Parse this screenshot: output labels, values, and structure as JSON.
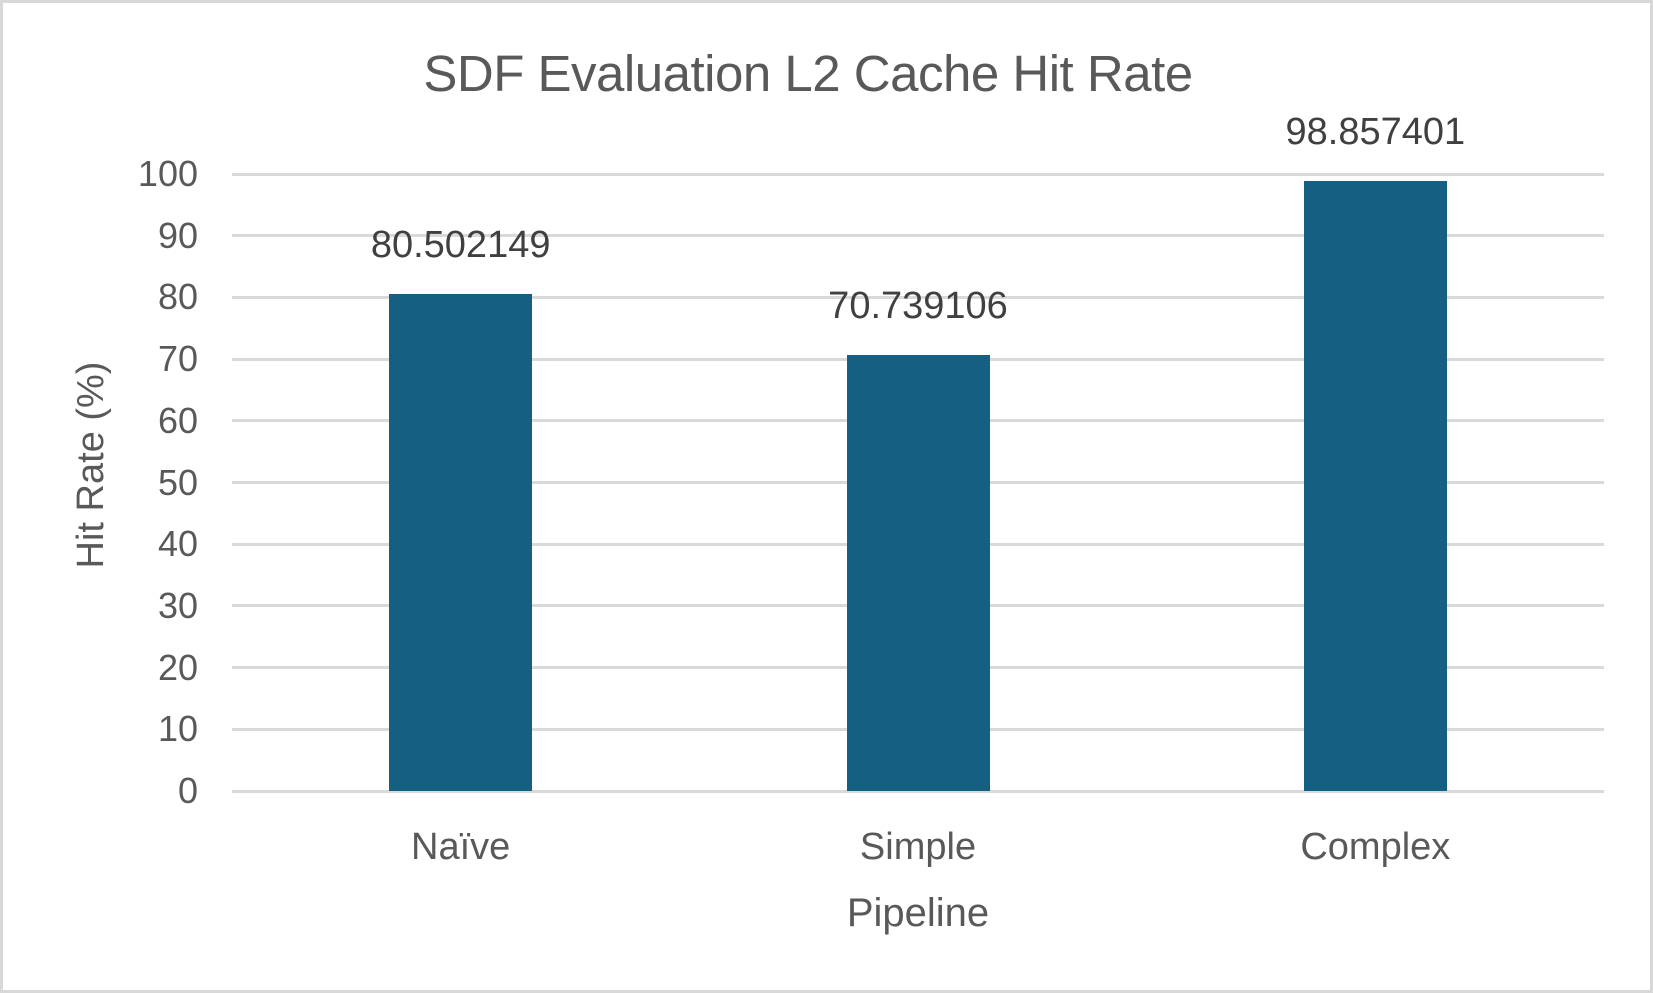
{
  "chart_data": {
    "type": "bar",
    "title": "SDF Evaluation L2 Cache Hit Rate",
    "xlabel": "Pipeline",
    "ylabel": "Hit Rate (%)",
    "categories": [
      "Naïve",
      "Simple",
      "Complex"
    ],
    "values": [
      80.502149,
      70.739106,
      98.857401
    ],
    "data_labels": [
      "80.502149",
      "70.739106",
      "98.857401"
    ],
    "ylim": [
      0,
      100
    ],
    "yticks": [
      0,
      10,
      20,
      30,
      40,
      50,
      60,
      70,
      80,
      90,
      100
    ],
    "grid": "horizontal",
    "legend_position": "none",
    "colors": {
      "bar": "#156082",
      "gridline": "#d9d9d9",
      "axis_text": "#595959",
      "title_text": "#595959",
      "data_label_text": "#404040",
      "background": "#ffffff",
      "frame_border": "#d8d8d8"
    }
  }
}
